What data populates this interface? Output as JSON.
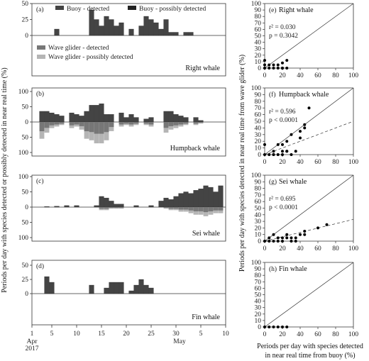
{
  "colors": {
    "buoy_detected": "#444444",
    "buoy_possible": "#222222",
    "glider_detected": "#777777",
    "glider_possible": "#b5b5b5",
    "points": "#000000"
  },
  "left_ylabel": "Periods per day with species detected or possibly detected in near real time (%)",
  "right_ylabel": "Periods per day with species detected in near real time from wave glider (%)",
  "right_xlabel_line1": "Periods per day with species detected",
  "right_xlabel_line2": "in near real time from buoy (%)",
  "x_ticks": [
    "1",
    "5",
    "10",
    "15",
    "20",
    "25",
    "30",
    "5",
    "10"
  ],
  "x_month_start_line1": "Apr",
  "x_month_start_line2": "2017",
  "x_month_mid": "May",
  "legend": {
    "buoy_detected": "Buoy - detected",
    "buoy_possible": "Buoy - possibly detected",
    "glider_detected": "Wave glider - detected",
    "glider_possible": "Wave glider - possibly detected"
  },
  "chart_data": [
    {
      "type": "bar",
      "panel": "(a)",
      "name": "Right whale",
      "x": [
        6,
        13,
        14,
        15,
        16,
        17,
        18,
        19,
        21,
        23,
        24,
        25,
        26,
        27,
        28,
        29,
        30,
        32,
        33
      ],
      "buoy": [
        10,
        40,
        25,
        15,
        30,
        25,
        15,
        20,
        10,
        15,
        30,
        25,
        20,
        10,
        25,
        5,
        5,
        5,
        5
      ],
      "glider": [
        0,
        0,
        0,
        0,
        0,
        0,
        0,
        0,
        0,
        0,
        0,
        0,
        0,
        0,
        0,
        0,
        0,
        0,
        0
      ],
      "ylim_up": [
        0,
        50
      ],
      "ylim_down": [
        0,
        0
      ]
    },
    {
      "type": "bar",
      "panel": "(b)",
      "name": "Humpback whale",
      "x": [
        3,
        4,
        5,
        6,
        7,
        9,
        10,
        11,
        12,
        13,
        14,
        15,
        16,
        17,
        19,
        20,
        21,
        22,
        24,
        25,
        28,
        29,
        30,
        31,
        32,
        34,
        35
      ],
      "buoy": [
        35,
        35,
        30,
        25,
        20,
        30,
        25,
        20,
        35,
        55,
        55,
        60,
        25,
        25,
        30,
        15,
        25,
        15,
        10,
        15,
        35,
        35,
        25,
        20,
        15,
        15,
        5
      ],
      "glider": [
        55,
        35,
        20,
        15,
        10,
        20,
        15,
        25,
        55,
        60,
        70,
        70,
        60,
        30,
        15,
        10,
        15,
        10,
        10,
        15,
        35,
        25,
        20,
        15,
        10,
        10,
        5
      ],
      "ylim_up": [
        0,
        100
      ],
      "ylim_down": [
        0,
        100
      ]
    },
    {
      "type": "bar",
      "panel": "(c)",
      "name": "Sei whale",
      "x": [
        4,
        6,
        8,
        10,
        14,
        15,
        16,
        17,
        18,
        19,
        22,
        25,
        27,
        28,
        29,
        30,
        31,
        32,
        33,
        34,
        35,
        36,
        37,
        38,
        39
      ],
      "buoy": [
        2,
        3,
        5,
        5,
        5,
        35,
        30,
        20,
        10,
        10,
        5,
        5,
        20,
        30,
        25,
        35,
        45,
        50,
        45,
        55,
        60,
        70,
        65,
        50,
        70
      ],
      "glider": [
        0,
        0,
        0,
        0,
        0,
        10,
        10,
        5,
        5,
        5,
        0,
        0,
        0,
        5,
        10,
        10,
        15,
        15,
        20,
        25,
        25,
        30,
        25,
        20,
        20
      ],
      "ylim_up": [
        0,
        100
      ],
      "ylim_down": [
        0,
        100
      ]
    },
    {
      "type": "bar",
      "panel": "(d)",
      "name": "Fin whale",
      "x": [
        4,
        5,
        13,
        16,
        17,
        18,
        19,
        21,
        22,
        23,
        24,
        25
      ],
      "buoy": [
        30,
        20,
        15,
        10,
        20,
        20,
        20,
        5,
        15,
        25,
        15,
        10
      ],
      "glider": [
        0,
        0,
        0,
        0,
        0,
        0,
        0,
        0,
        0,
        0,
        0,
        0
      ],
      "ylim_up": [
        0,
        50
      ],
      "ylim_down": [
        0,
        0
      ]
    },
    {
      "type": "scatter",
      "panel": "(e)",
      "name": "Right whale",
      "stats": [
        "r² = 0.030",
        "p = 0.3042"
      ],
      "x": [
        0,
        0,
        0,
        5,
        10,
        15,
        20,
        25,
        20,
        25,
        5,
        10,
        15,
        20
      ],
      "y": [
        12,
        5,
        0,
        5,
        5,
        5,
        0,
        0,
        8,
        12,
        0,
        0,
        0,
        0
      ],
      "fit": null,
      "xlim": [
        0,
        100
      ],
      "ylim": [
        0,
        100
      ]
    },
    {
      "type": "scatter",
      "panel": "(f)",
      "name": "Humpback whale",
      "stats": [
        "r² = 0.596",
        "p < 0.0001"
      ],
      "x": [
        0,
        0,
        5,
        10,
        10,
        15,
        15,
        20,
        20,
        25,
        25,
        30,
        30,
        35,
        40,
        45,
        50,
        10,
        20,
        25,
        40,
        45
      ],
      "y": [
        15,
        0,
        0,
        5,
        0,
        15,
        0,
        5,
        0,
        20,
        5,
        30,
        0,
        5,
        35,
        45,
        70,
        0,
        15,
        5,
        25,
        40
      ],
      "fit": {
        "slope": 0.5,
        "intercept": 0
      },
      "xlim": [
        0,
        100
      ],
      "ylim": [
        0,
        100
      ]
    },
    {
      "type": "scatter",
      "panel": "(g)",
      "name": "Sei whale",
      "stats": [
        "r² = 0.695",
        "p < 0.0001"
      ],
      "x": [
        0,
        5,
        10,
        15,
        20,
        25,
        25,
        30,
        35,
        40,
        45,
        60,
        70,
        5,
        10,
        20,
        30,
        35,
        15,
        45
      ],
      "y": [
        0,
        5,
        10,
        5,
        5,
        5,
        10,
        5,
        5,
        10,
        15,
        20,
        25,
        0,
        0,
        0,
        0,
        0,
        0,
        10
      ],
      "fit": {
        "slope": 0.33,
        "intercept": 0
      },
      "xlim": [
        0,
        100
      ],
      "ylim": [
        0,
        100
      ]
    },
    {
      "type": "scatter",
      "panel": "(h)",
      "name": "Fin whale",
      "stats": [],
      "x": [
        0,
        5,
        10,
        15,
        20,
        25
      ],
      "y": [
        0,
        0,
        0,
        0,
        0,
        0
      ],
      "fit": null,
      "xlim": [
        0,
        100
      ],
      "ylim": [
        0,
        100
      ]
    }
  ]
}
